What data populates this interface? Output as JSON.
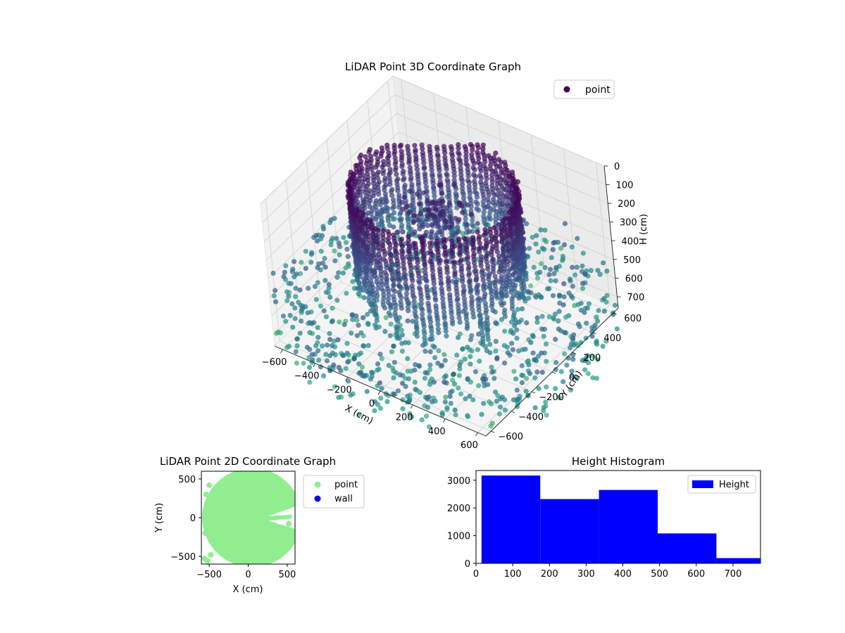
{
  "figure": {
    "background": "#ffffff"
  },
  "chart_data": [
    {
      "type": "scatter",
      "projection": "3d",
      "title": "LiDAR Point 3D Coordinate Graph",
      "xlabel": "X (cm)",
      "ylabel": "Y (cm)",
      "zlabel": "H (cm)",
      "xlim": [
        -650,
        650
      ],
      "ylim": [
        -650,
        650
      ],
      "zlim": [
        0,
        760
      ],
      "z_inverted": true,
      "xticks": [
        "−600",
        "−400",
        "−200",
        "0",
        "200",
        "400",
        "600"
      ],
      "yticks": [
        "−600",
        "−400",
        "−200",
        "0",
        "200",
        "400",
        "600"
      ],
      "zticks": [
        "0",
        "100",
        "200",
        "300",
        "400",
        "500",
        "600",
        "700"
      ],
      "xtick_values": [
        -600,
        -400,
        -200,
        0,
        200,
        400,
        600
      ],
      "ytick_values": [
        -600,
        -400,
        -200,
        0,
        200,
        400,
        600
      ],
      "ztick_values": [
        0,
        100,
        200,
        300,
        400,
        500,
        600,
        700
      ],
      "grid": true,
      "colormap": "viridis",
      "legend": {
        "entries": [
          {
            "label": "point",
            "color": "#440154"
          }
        ],
        "position": "upper right"
      },
      "series": [
        {
          "name": "point",
          "shape": "cylindrical wall with radial floor returns",
          "wall_radius": 440,
          "wall_columns": 72,
          "wall_height_range": [
            0,
            620
          ],
          "floor_height_range": [
            560,
            760
          ],
          "floor_radius_range": [
            150,
            900
          ]
        }
      ]
    },
    {
      "type": "scatter",
      "title": "LiDAR Point 2D Coordinate Graph",
      "xlabel": "X (cm)",
      "ylabel": "Y (cm)",
      "xlim": [
        -600,
        600
      ],
      "ylim": [
        -600,
        600
      ],
      "xticks": [
        "−500",
        "0",
        "500"
      ],
      "yticks": [
        "−500",
        "0",
        "500"
      ],
      "xtick_values": [
        -500,
        0,
        500
      ],
      "ytick_values": [
        -500,
        0,
        500
      ],
      "grid": false,
      "legend": {
        "entries": [
          {
            "label": "point",
            "color": "#90ee90"
          },
          {
            "label": "wall",
            "color": "#0000ff"
          }
        ],
        "position": "outside upper right"
      },
      "series": [
        {
          "name": "point",
          "color": "#90ee90",
          "shape": "dense disk with wedge notch on right (~0 to 100 cm Y, x > 200)"
        },
        {
          "name": "wall",
          "color": "#0000ff",
          "points": []
        }
      ]
    },
    {
      "type": "bar",
      "subtype": "histogram",
      "title": "Height Histogram",
      "xlabel": "",
      "ylabel": "",
      "xlim": [
        0,
        775
      ],
      "ylim": [
        0,
        3350
      ],
      "xticks": [
        "0",
        "100",
        "200",
        "300",
        "400",
        "500",
        "600",
        "700"
      ],
      "yticks": [
        "0",
        "1000",
        "2000",
        "3000"
      ],
      "xtick_values": [
        0,
        100,
        200,
        300,
        400,
        500,
        600,
        700
      ],
      "ytick_values": [
        0,
        1000,
        2000,
        3000
      ],
      "bin_edges": [
        15,
        175,
        335,
        495,
        655,
        815
      ],
      "series": [
        {
          "name": "Height",
          "color": "#0000ff",
          "values": [
            3170,
            2320,
            2650,
            1080,
            190
          ]
        }
      ],
      "legend": {
        "entries": [
          {
            "label": "Height",
            "color": "#0000ff"
          }
        ],
        "position": "upper right"
      }
    }
  ]
}
